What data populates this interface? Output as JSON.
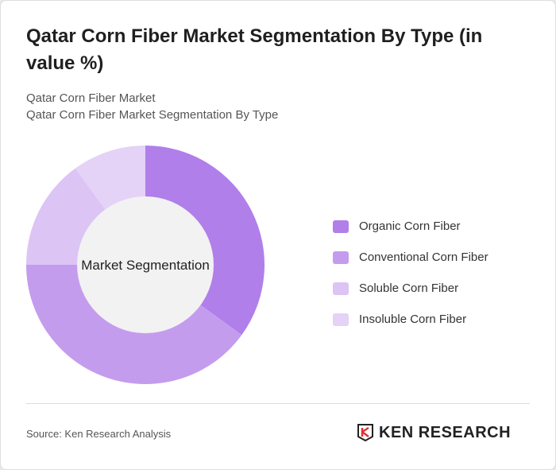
{
  "title": "Qatar Corn Fiber Market Segmentation By Type (in value %)",
  "subtitle1": "Qatar Corn Fiber Market",
  "subtitle2": "Qatar Corn Fiber Market Segmentation By Type",
  "source": "Source: Ken Research Analysis",
  "logo_text": "KEN RESEARCH",
  "chart_data": {
    "type": "pie",
    "donut": true,
    "center_label": "Market Segmentation",
    "categories": [
      "Organic Corn Fiber",
      "Conventional Corn Fiber",
      "Soluble Corn Fiber",
      "Insoluble Corn Fiber"
    ],
    "values": [
      35,
      40,
      15,
      10
    ],
    "colors": [
      "#b07fea",
      "#c49ced",
      "#dcc4f5",
      "#e4d2f7"
    ],
    "legend_position": "right"
  }
}
